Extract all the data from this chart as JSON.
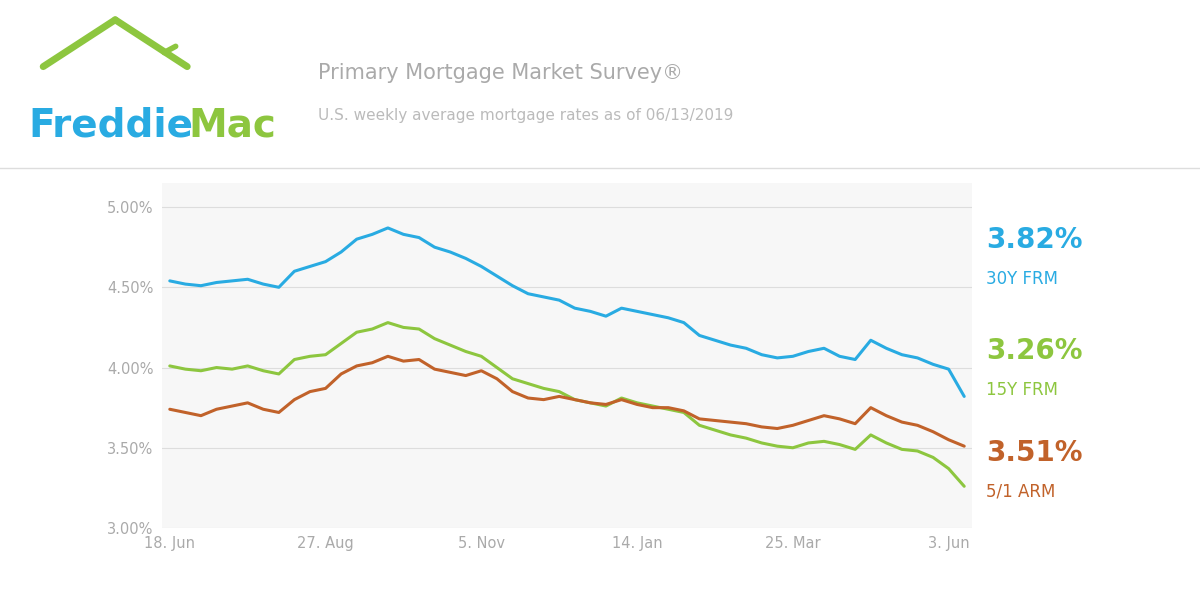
{
  "title_line1": "Primary Mortgage Market Survey®",
  "title_line2": "U.S. weekly average mortgage rates as of 06/13/2019",
  "bg_color": "#ffffff",
  "plot_bg_color": "#f7f7f7",
  "line_30y_color": "#29abe2",
  "line_15y_color": "#8dc63f",
  "line_arm_color": "#c1622a",
  "label_30y": "3.82%",
  "label_15y": "3.26%",
  "label_arm": "3.51%",
  "sublabel_30y": "30Y FRM",
  "sublabel_15y": "15Y FRM",
  "sublabel_arm": "5/1 ARM",
  "freddie_blue": "#29abe2",
  "freddie_green": "#8dc63f",
  "title_color": "#aaaaaa",
  "subtitle_color": "#bbbbbb",
  "tick_color": "#aaaaaa",
  "grid_color": "#dddddd",
  "separator_color": "#dddddd",
  "ylim_min": 3.0,
  "ylim_max": 5.15,
  "yticks": [
    3.0,
    3.5,
    4.0,
    4.5,
    5.0
  ],
  "xtick_labels": [
    "18. Jun",
    "27. Aug",
    "5. Nov",
    "14. Jan",
    "25. Mar",
    "3. Jun"
  ],
  "xtick_positions": [
    0,
    10,
    20,
    30,
    40,
    50
  ],
  "data_30y": [
    4.54,
    4.52,
    4.51,
    4.53,
    4.54,
    4.55,
    4.52,
    4.5,
    4.6,
    4.63,
    4.66,
    4.72,
    4.8,
    4.83,
    4.87,
    4.83,
    4.81,
    4.75,
    4.72,
    4.68,
    4.63,
    4.57,
    4.51,
    4.46,
    4.44,
    4.42,
    4.37,
    4.35,
    4.32,
    4.37,
    4.35,
    4.33,
    4.31,
    4.28,
    4.2,
    4.17,
    4.14,
    4.12,
    4.08,
    4.06,
    4.07,
    4.1,
    4.12,
    4.07,
    4.05,
    4.17,
    4.12,
    4.08,
    4.06,
    4.02,
    3.99,
    3.82
  ],
  "data_15y": [
    4.01,
    3.99,
    3.98,
    4.0,
    3.99,
    4.01,
    3.98,
    3.96,
    4.05,
    4.07,
    4.08,
    4.15,
    4.22,
    4.24,
    4.28,
    4.25,
    4.24,
    4.18,
    4.14,
    4.1,
    4.07,
    4.0,
    3.93,
    3.9,
    3.87,
    3.85,
    3.8,
    3.78,
    3.76,
    3.81,
    3.78,
    3.76,
    3.74,
    3.72,
    3.64,
    3.61,
    3.58,
    3.56,
    3.53,
    3.51,
    3.5,
    3.53,
    3.54,
    3.52,
    3.49,
    3.58,
    3.53,
    3.49,
    3.48,
    3.44,
    3.37,
    3.26
  ],
  "data_arm": [
    3.74,
    3.72,
    3.7,
    3.74,
    3.76,
    3.78,
    3.74,
    3.72,
    3.8,
    3.85,
    3.87,
    3.96,
    4.01,
    4.03,
    4.07,
    4.04,
    4.05,
    3.99,
    3.97,
    3.95,
    3.98,
    3.93,
    3.85,
    3.81,
    3.8,
    3.82,
    3.8,
    3.78,
    3.77,
    3.8,
    3.77,
    3.75,
    3.75,
    3.73,
    3.68,
    3.67,
    3.66,
    3.65,
    3.63,
    3.62,
    3.64,
    3.67,
    3.7,
    3.68,
    3.65,
    3.75,
    3.7,
    3.66,
    3.64,
    3.6,
    3.55,
    3.51
  ]
}
